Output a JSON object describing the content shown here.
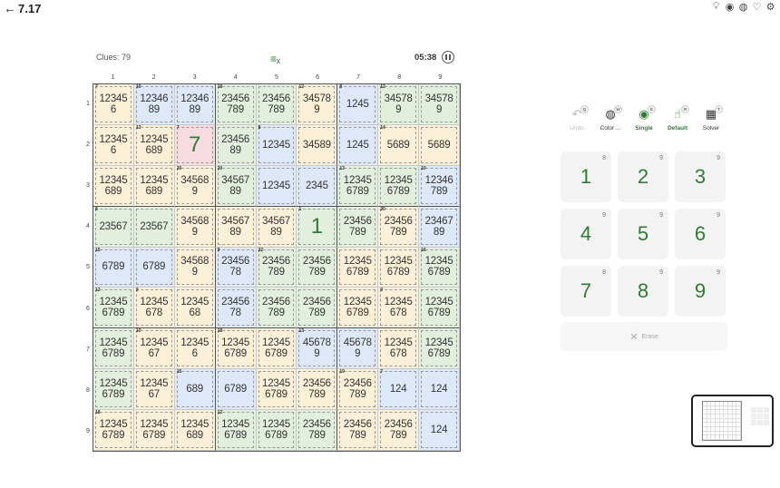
{
  "header": {
    "back_label": "7.17",
    "icons": [
      "lightbulb-icon",
      "eye-icon",
      "palette-icon",
      "heart-icon",
      "gear-icon"
    ]
  },
  "status": {
    "clues_label": "Clues: 79",
    "timer": "05:38"
  },
  "columns": [
    "1",
    "2",
    "3",
    "4",
    "5",
    "6",
    "7",
    "8",
    "9"
  ],
  "rows": [
    "1",
    "2",
    "3",
    "4",
    "5",
    "6",
    "7",
    "8",
    "9"
  ],
  "grid": [
    [
      {
        "cage": "7",
        "c": "y",
        "t": "12345 6"
      },
      {
        "cage": "10",
        "c": "b",
        "t": "12346 89"
      },
      {
        "cage": "",
        "c": "b",
        "t": "12346 89"
      },
      {
        "cage": "18",
        "c": "g",
        "t": "23456 789"
      },
      {
        "cage": "",
        "c": "g",
        "t": "23456 789"
      },
      {
        "cage": "12",
        "c": "y",
        "t": "34578 9"
      },
      {
        "cage": "8",
        "c": "b",
        "t": "1245"
      },
      {
        "cage": "12",
        "c": "g",
        "t": "34578 9"
      },
      {
        "cage": "",
        "c": "g",
        "t": "34578 9"
      }
    ],
    [
      {
        "cage": "",
        "c": "y",
        "t": "12345 6"
      },
      {
        "cage": "13",
        "c": "y",
        "t": "12345 689"
      },
      {
        "cage": "7",
        "c": "p",
        "v": "7"
      },
      {
        "cage": "",
        "c": "g",
        "t": "23456 89"
      },
      {
        "cage": "8",
        "c": "b",
        "t": "12345"
      },
      {
        "cage": "",
        "c": "y",
        "t": "34589"
      },
      {
        "cage": "",
        "c": "b",
        "t": "1245"
      },
      {
        "cage": "14",
        "c": "y",
        "t": "5689"
      },
      {
        "cage": "",
        "c": "y",
        "t": "5689"
      }
    ],
    [
      {
        "cage": "",
        "c": "y",
        "t": "12345 689"
      },
      {
        "cage": "",
        "c": "y",
        "t": "12345 689"
      },
      {
        "cage": "20",
        "c": "y",
        "t": "34568 9"
      },
      {
        "cage": "20",
        "c": "g",
        "t": "34567 89"
      },
      {
        "cage": "",
        "c": "b",
        "t": "12345"
      },
      {
        "cage": "",
        "c": "b",
        "t": "2345"
      },
      {
        "cage": "13",
        "c": "g",
        "t": "12345 6789"
      },
      {
        "cage": "",
        "c": "g",
        "t": "12345 6789"
      },
      {
        "cage": "10",
        "c": "b",
        "t": "12346 789"
      }
    ],
    [
      {
        "cage": "8",
        "c": "g",
        "t": "23567"
      },
      {
        "cage": "",
        "c": "g",
        "t": "23567"
      },
      {
        "cage": "",
        "c": "y",
        "t": "34568 9"
      },
      {
        "cage": "",
        "c": "y",
        "t": "34567 89"
      },
      {
        "cage": "",
        "c": "y",
        "t": "34567 89"
      },
      {
        "cage": "1",
        "c": "g",
        "v": "1"
      },
      {
        "cage": "",
        "c": "g",
        "t": "23456 789"
      },
      {
        "cage": "20",
        "c": "y",
        "t": "23456 789"
      },
      {
        "cage": "",
        "c": "b",
        "t": "23467 89"
      }
    ],
    [
      {
        "cage": "15",
        "c": "b",
        "t": "6789"
      },
      {
        "cage": "",
        "c": "b",
        "t": "6789"
      },
      {
        "cage": "",
        "c": "y",
        "t": "34568 9"
      },
      {
        "cage": "9",
        "c": "b",
        "t": "23456 78"
      },
      {
        "cage": "22",
        "c": "g",
        "t": "23456 789"
      },
      {
        "cage": "",
        "c": "g",
        "t": "23456 789"
      },
      {
        "cage": "",
        "c": "y",
        "t": "12345 6789"
      },
      {
        "cage": "",
        "c": "y",
        "t": "12345 6789"
      },
      {
        "cage": "16",
        "c": "g",
        "t": "12345 6789"
      }
    ],
    [
      {
        "cage": "12",
        "c": "g",
        "t": "12345 6789"
      },
      {
        "cage": "9",
        "c": "y",
        "t": "12345 678"
      },
      {
        "cage": "",
        "c": "y",
        "t": "12345 68"
      },
      {
        "cage": "",
        "c": "b",
        "t": "23456 78"
      },
      {
        "cage": "",
        "c": "g",
        "t": "23456 789"
      },
      {
        "cage": "",
        "c": "g",
        "t": "23456 789"
      },
      {
        "cage": "",
        "c": "y",
        "t": "12345 6789"
      },
      {
        "cage": "9",
        "c": "y",
        "t": "12345 678"
      },
      {
        "cage": "",
        "c": "g",
        "t": "12345 6789"
      }
    ],
    [
      {
        "cage": "",
        "c": "g",
        "t": "12345 6789"
      },
      {
        "cage": "10",
        "c": "y",
        "t": "12345 67"
      },
      {
        "cage": "",
        "c": "y",
        "t": "12345 6"
      },
      {
        "cage": "18",
        "c": "y",
        "t": "12345 6789"
      },
      {
        "cage": "",
        "c": "y",
        "t": "12345 6789"
      },
      {
        "cage": "13",
        "c": "b",
        "t": "45678 9"
      },
      {
        "cage": "",
        "c": "b",
        "t": "45678 9"
      },
      {
        "cage": "",
        "c": "y",
        "t": "12345 678"
      },
      {
        "cage": "",
        "c": "g",
        "t": "12345 6789"
      }
    ],
    [
      {
        "cage": "",
        "c": "g",
        "t": "12345 6789"
      },
      {
        "cage": "",
        "c": "y",
        "t": "12345 67"
      },
      {
        "cage": "15",
        "c": "b",
        "t": "689"
      },
      {
        "cage": "",
        "c": "b",
        "t": "6789"
      },
      {
        "cage": "",
        "c": "y",
        "t": "12345 6789"
      },
      {
        "cage": "",
        "c": "y",
        "t": "23456 789"
      },
      {
        "cage": "19",
        "c": "y",
        "t": "23456 789"
      },
      {
        "cage": "7",
        "c": "b",
        "t": "124"
      },
      {
        "cage": "",
        "c": "b",
        "t": "124"
      }
    ],
    [
      {
        "cage": "18",
        "c": "y",
        "t": "12345 6789"
      },
      {
        "cage": "",
        "c": "y",
        "t": "12345 6789"
      },
      {
        "cage": "",
        "c": "y",
        "t": "12345 689"
      },
      {
        "cage": "12",
        "c": "g",
        "t": "12345 6789"
      },
      {
        "cage": "",
        "c": "g",
        "t": "12345 6789"
      },
      {
        "cage": "",
        "c": "g",
        "t": "23456 789"
      },
      {
        "cage": "",
        "c": "y",
        "t": "23456 789"
      },
      {
        "cage": "",
        "c": "y",
        "t": "23456 789"
      },
      {
        "cage": "",
        "c": "b",
        "t": "124"
      }
    ]
  ],
  "toolbar": [
    {
      "label": "Undo",
      "key": "Q",
      "icon": "undo-icon",
      "state": "disabled"
    },
    {
      "label": "Color ...",
      "key": "W",
      "icon": "palette-icon",
      "state": "normal"
    },
    {
      "label": "Single",
      "key": "E",
      "icon": "radio-icon",
      "state": "active"
    },
    {
      "label": "Default",
      "key": "R",
      "icon": "touch-icon",
      "state": "active"
    },
    {
      "label": "Solver",
      "key": "T",
      "icon": "calculator-icon",
      "state": "normal"
    }
  ],
  "numpad": [
    {
      "digit": "1",
      "count": "8"
    },
    {
      "digit": "2",
      "count": "9"
    },
    {
      "digit": "3",
      "count": "9"
    },
    {
      "digit": "4",
      "count": "9"
    },
    {
      "digit": "5",
      "count": "9"
    },
    {
      "digit": "6",
      "count": "9"
    },
    {
      "digit": "7",
      "count": "8"
    },
    {
      "digit": "8",
      "count": "9"
    },
    {
      "digit": "9",
      "count": "9"
    }
  ],
  "erase_label": "Erase",
  "colors": {
    "accent": "#2e7d32",
    "yellow": "#fdf0d8",
    "blue": "#dde9f8",
    "green": "#e3efdd",
    "pink": "#f6dbe0"
  }
}
